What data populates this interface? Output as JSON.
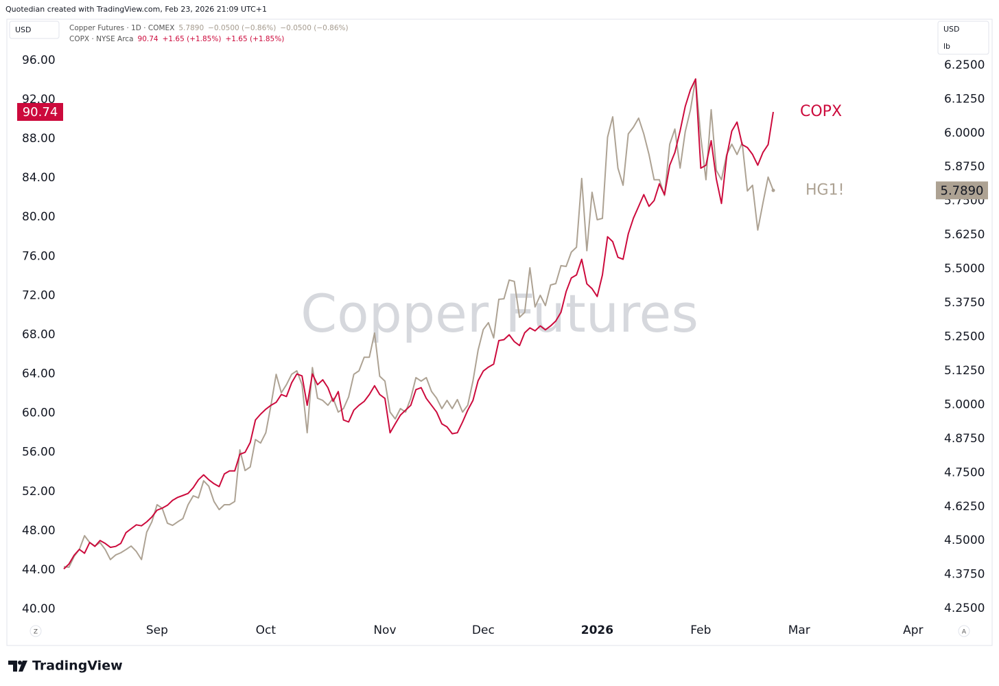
{
  "header": "Quotedian created with TradingView.com, Feb 23, 2026 21:09 UTC+1",
  "ui": {
    "left_currency": "USD",
    "right_currency": "USD",
    "right_unit": "lb",
    "left_button": "Z",
    "right_button": "A",
    "brand": "TradingView"
  },
  "chart_data": {
    "type": "line",
    "title": "Copper Futures",
    "legend": [
      {
        "name": "Copper Futures · 1D · COMEX",
        "last": "5.7890",
        "changes": [
          "−0.0500 (−0.86%)",
          "−0.0500 (−0.86%)"
        ]
      },
      {
        "name": "COPX · NYSE Arca",
        "last": "90.74",
        "changes": [
          "+1.65 (+1.85%)",
          "+1.65 (+1.85%)"
        ]
      }
    ],
    "categories": [
      null,
      null,
      null,
      null,
      null,
      null,
      null,
      null,
      null,
      null,
      null,
      null,
      null,
      null,
      null,
      null,
      null,
      null,
      "Sep",
      null,
      null,
      null,
      null,
      null,
      null,
      null,
      null,
      null,
      null,
      null,
      null,
      null,
      null,
      null,
      null,
      null,
      null,
      null,
      null,
      "Oct",
      null,
      null,
      null,
      null,
      null,
      null,
      null,
      null,
      null,
      null,
      null,
      null,
      null,
      null,
      null,
      null,
      null,
      null,
      null,
      null,
      null,
      null,
      "Nov",
      null,
      null,
      null,
      null,
      null,
      null,
      null,
      null,
      null,
      null,
      null,
      null,
      null,
      null,
      null,
      null,
      null,
      null,
      "Dec",
      null,
      null,
      null,
      null,
      null,
      null,
      null,
      null,
      null,
      null,
      null,
      null,
      null,
      null,
      null,
      null,
      null,
      null,
      null,
      null,
      null,
      "2026",
      null,
      null,
      null,
      null,
      null,
      null,
      null,
      null,
      null,
      null,
      null,
      null,
      null,
      null,
      null,
      null,
      null,
      null,
      null,
      "Feb",
      null,
      null,
      null,
      null,
      null,
      null,
      null,
      null,
      null,
      null,
      null,
      null,
      null,
      null,
      null,
      null,
      null,
      null,
      "Mar",
      null,
      null,
      null,
      null,
      null,
      null,
      null,
      null,
      null,
      null,
      null,
      null,
      null,
      null,
      null,
      null,
      null,
      null,
      null,
      null,
      null,
      "Apr",
      null,
      null,
      null,
      null
    ],
    "series": [
      {
        "name": "COPX",
        "color": "#cc0a3c",
        "last_label": "90.74",
        "values": [
          44.1,
          44.6,
          45.5,
          46.1,
          45.7,
          46.8,
          46.4,
          47.0,
          46.7,
          46.3,
          46.4,
          46.7,
          47.8,
          48.2,
          48.6,
          48.5,
          48.9,
          49.4,
          50.1,
          50.3,
          50.6,
          51.1,
          51.4,
          51.6,
          51.8,
          52.4,
          53.2,
          53.7,
          53.2,
          52.8,
          52.5,
          53.8,
          54.1,
          54.1,
          55.8,
          56.0,
          57.0,
          59.3,
          59.9,
          60.4,
          60.8,
          61.1,
          61.9,
          61.7,
          63.1,
          64.0,
          63.8,
          60.8,
          64.0,
          62.9,
          63.4,
          62.6,
          61.2,
          62.2,
          59.3,
          59.1,
          60.3,
          60.8,
          61.2,
          61.9,
          62.8,
          61.9,
          61.5,
          58.0,
          58.9,
          59.8,
          60.3,
          60.8,
          62.4,
          62.6,
          61.5,
          60.8,
          60.1,
          58.9,
          58.6,
          57.9,
          58.0,
          59.1,
          60.3,
          61.3,
          63.3,
          64.3,
          64.7,
          65.0,
          67.4,
          67.5,
          68.0,
          67.3,
          66.9,
          68.2,
          68.7,
          68.4,
          68.9,
          68.5,
          68.9,
          69.4,
          70.3,
          72.4,
          73.8,
          74.1,
          75.7,
          73.2,
          72.7,
          71.9,
          74.1,
          78.0,
          77.5,
          75.9,
          75.7,
          78.3,
          79.9,
          81.1,
          82.3,
          81.1,
          81.7,
          83.4,
          82.3,
          85.3,
          86.6,
          88.8,
          91.3,
          93.0,
          94.1,
          85.0,
          85.3,
          87.8,
          83.9,
          81.4,
          86.2,
          88.8,
          89.7,
          87.4,
          87.1,
          86.4,
          85.3,
          86.6,
          87.4,
          90.74,
          null,
          null,
          null,
          null,
          null,
          null,
          null,
          null,
          null,
          null,
          null,
          null,
          null,
          null,
          null,
          null,
          null,
          null,
          null,
          null,
          null,
          null,
          null,
          null,
          null,
          null,
          null,
          null,
          null,
          null,
          null
        ]
      },
      {
        "name": "HG1!",
        "color": "#ada293",
        "axis": "y2",
        "last_label": "5.7890",
        "values": [
          4.404,
          4.402,
          4.442,
          4.467,
          4.518,
          4.493,
          4.48,
          4.493,
          4.467,
          4.43,
          4.447,
          4.455,
          4.467,
          4.48,
          4.46,
          4.43,
          4.531,
          4.569,
          4.632,
          4.619,
          4.564,
          4.556,
          4.569,
          4.581,
          4.632,
          4.665,
          4.657,
          4.72,
          4.7,
          4.644,
          4.614,
          4.632,
          4.632,
          4.644,
          4.834,
          4.758,
          4.771,
          4.872,
          4.859,
          4.897,
          4.998,
          5.112,
          5.044,
          5.074,
          5.112,
          5.125,
          5.074,
          4.897,
          5.137,
          5.024,
          5.016,
          4.998,
          5.024,
          4.973,
          4.986,
          5.029,
          5.112,
          5.125,
          5.175,
          5.175,
          5.264,
          5.105,
          5.087,
          4.973,
          4.948,
          4.986,
          4.973,
          5.024,
          5.1,
          5.087,
          5.1,
          5.049,
          5.024,
          4.986,
          5.016,
          4.986,
          5.019,
          4.973,
          4.998,
          5.087,
          5.201,
          5.277,
          5.302,
          5.246,
          5.388,
          5.39,
          5.459,
          5.454,
          5.322,
          5.34,
          5.504,
          5.36,
          5.403,
          5.365,
          5.441,
          5.446,
          5.512,
          5.509,
          5.562,
          5.58,
          5.833,
          5.567,
          5.782,
          5.681,
          5.686,
          5.985,
          6.06,
          5.871,
          5.808,
          5.997,
          6.022,
          6.055,
          5.997,
          5.921,
          5.828,
          5.828,
          5.77,
          5.959,
          6.015,
          5.871,
          6.005,
          6.086,
          6.199,
          5.985,
          5.828,
          6.086,
          5.863,
          5.828,
          5.921,
          5.959,
          5.921,
          5.964,
          5.787,
          5.808,
          5.643,
          5.742,
          5.838,
          5.789,
          null,
          null,
          null,
          null,
          null,
          null,
          null,
          null,
          null,
          null,
          null,
          null,
          null,
          null,
          null,
          null,
          null,
          null,
          null,
          null,
          null,
          null,
          null,
          null,
          null,
          null,
          null,
          null,
          null,
          null,
          null
        ]
      }
    ],
    "ylim": [
      39.09,
      100.06
    ],
    "yticks": [
      {
        "value": 40,
        "label": "40.00"
      },
      {
        "value": 44,
        "label": "44.00"
      },
      {
        "value": 48,
        "label": "48.00"
      },
      {
        "value": 52,
        "label": "52.00"
      },
      {
        "value": 56,
        "label": "56.00"
      },
      {
        "value": 60,
        "label": "60.00"
      },
      {
        "value": 64,
        "label": "64.00"
      },
      {
        "value": 68,
        "label": "68.00"
      },
      {
        "value": 72,
        "label": "72.00"
      },
      {
        "value": 76,
        "label": "76.00"
      },
      {
        "value": 80,
        "label": "80.00"
      },
      {
        "value": 84,
        "label": "84.00"
      },
      {
        "value": 88,
        "label": "88.00"
      },
      {
        "value": 92,
        "label": "92.00"
      },
      {
        "value": 96,
        "label": "96.00"
      }
    ],
    "y2lim": [
      4.215,
      6.414
    ],
    "y2ticks": [
      {
        "value": 4.25,
        "label": "4.2500"
      },
      {
        "value": 4.375,
        "label": "4.3750"
      },
      {
        "value": 4.5,
        "label": "4.5000"
      },
      {
        "value": 4.625,
        "label": "4.6250"
      },
      {
        "value": 4.75,
        "label": "4.7500"
      },
      {
        "value": 4.875,
        "label": "4.8750"
      },
      {
        "value": 5,
        "label": "5.0000"
      },
      {
        "value": 5.125,
        "label": "5.1250"
      },
      {
        "value": 5.25,
        "label": "5.2500"
      },
      {
        "value": 5.375,
        "label": "5.3750"
      },
      {
        "value": 5.5,
        "label": "5.5000"
      },
      {
        "value": 5.625,
        "label": "5.6250"
      },
      {
        "value": 5.75,
        "label": "5.7500"
      },
      {
        "value": 5.875,
        "label": "5.8750"
      },
      {
        "value": 6,
        "label": "6.0000"
      },
      {
        "value": 6.125,
        "label": "6.1250"
      },
      {
        "value": 6.25,
        "label": "6.2500"
      }
    ],
    "grid": false
  }
}
